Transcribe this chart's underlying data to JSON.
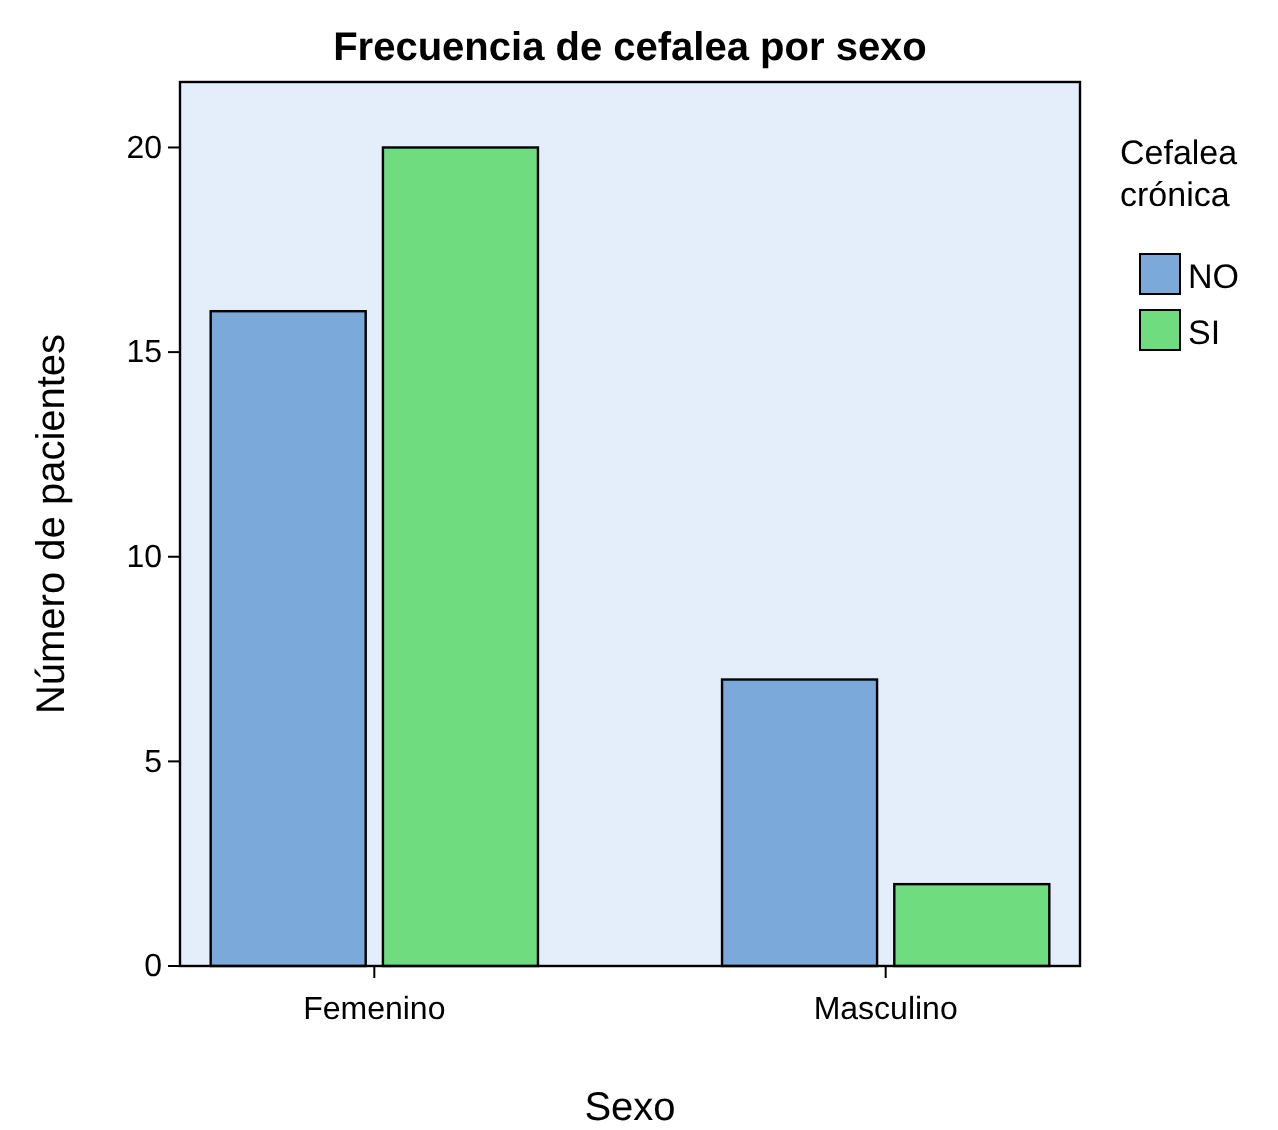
{
  "chart_data": {
    "type": "bar",
    "title": "Frecuencia de cefalea por sexo",
    "xlabel": "Sexo",
    "ylabel": "Número de pacientes",
    "legend_title": "Cefalea crónica",
    "categories": [
      "Femenino",
      "Masculino"
    ],
    "series": [
      {
        "name": "NO",
        "color": "#7ba9d9",
        "values": [
          16,
          7
        ]
      },
      {
        "name": "SI",
        "color": "#70dc80",
        "values": [
          20,
          2
        ]
      }
    ],
    "ylim": [
      0,
      21.6
    ],
    "yticks": [
      0,
      5,
      10,
      15,
      20
    ],
    "grid": false,
    "legend": "top right"
  }
}
